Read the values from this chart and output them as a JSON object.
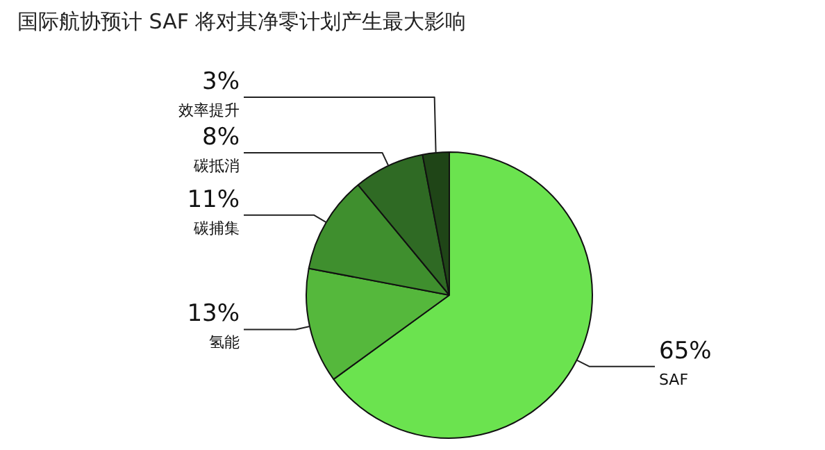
{
  "chart_data": {
    "type": "pie",
    "title": "国际航协预计 SAF 将对其净零计划产生最大影响",
    "categories": [
      "SAF",
      "氢能",
      "碳捕集",
      "碳抵消",
      "效率提升"
    ],
    "values": [
      65,
      13,
      11,
      8,
      3
    ],
    "value_labels": [
      "65%",
      "13%",
      "11%",
      "8%",
      "3%"
    ],
    "colors": [
      "#6be34f",
      "#55b83c",
      "#3f8f2e",
      "#2f6a24",
      "#1f4517"
    ]
  }
}
